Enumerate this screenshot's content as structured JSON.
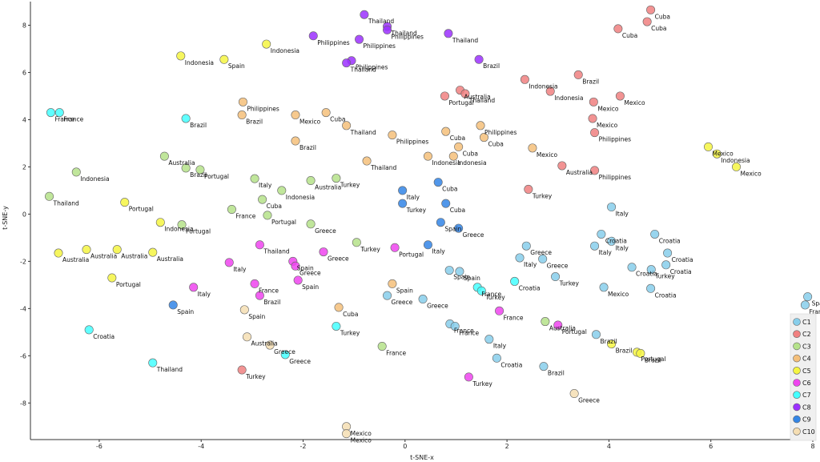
{
  "chart_data": {
    "type": "scatter",
    "xlabel": "t-SNE-x",
    "ylabel": "t-SNE-y",
    "xlim": [
      -7.35,
      8.0
    ],
    "ylim": [
      -9.55,
      9.0
    ],
    "xticks": [
      -6,
      -4,
      -2,
      0,
      2,
      4,
      6,
      8
    ],
    "yticks": [
      -8,
      -6,
      -4,
      -2,
      0,
      2,
      4,
      6,
      8
    ],
    "grid": false,
    "legend_position": "bottom-right",
    "series": [
      {
        "name": "C1",
        "color": "#87ceeb",
        "points": [
          {
            "x": 0.87,
            "y": -2.38,
            "label": "Spain"
          },
          {
            "x": 1.07,
            "y": -2.43,
            "label": "Spain"
          },
          {
            "x": 0.35,
            "y": -3.6,
            "label": "Greece"
          },
          {
            "x": -0.35,
            "y": -3.45,
            "label": "Greece"
          },
          {
            "x": 0.88,
            "y": -4.65,
            "label": "France"
          },
          {
            "x": 0.98,
            "y": -4.75,
            "label": "France"
          },
          {
            "x": 1.65,
            "y": -5.3,
            "label": "Italy"
          },
          {
            "x": 1.8,
            "y": -6.1,
            "label": "Croatia"
          },
          {
            "x": 2.72,
            "y": -6.45,
            "label": "Brazil"
          },
          {
            "x": 2.38,
            "y": -1.35,
            "label": "Greece"
          },
          {
            "x": 2.25,
            "y": -1.85,
            "label": "Italy"
          },
          {
            "x": 2.7,
            "y": -1.9,
            "label": "Greece"
          },
          {
            "x": 2.95,
            "y": -2.65,
            "label": "Turkey"
          },
          {
            "x": 3.72,
            "y": -1.35,
            "label": "Italy"
          },
          {
            "x": 3.85,
            "y": -0.85,
            "label": "Croatia"
          },
          {
            "x": 4.05,
            "y": -1.15,
            "label": "Italy"
          },
          {
            "x": 4.05,
            "y": 0.3,
            "label": "Italy"
          },
          {
            "x": 4.45,
            "y": -2.25,
            "label": "Croatia"
          },
          {
            "x": 3.9,
            "y": -3.1,
            "label": "Mexico"
          },
          {
            "x": 4.83,
            "y": -2.35,
            "label": "Turkey"
          },
          {
            "x": 4.9,
            "y": -0.85,
            "label": "Croatia"
          },
          {
            "x": 5.12,
            "y": -2.15,
            "label": "Croatia"
          },
          {
            "x": 5.15,
            "y": -1.65,
            "label": "Croatia"
          },
          {
            "x": 4.82,
            "y": -3.15,
            "label": "Croatia"
          },
          {
            "x": 3.75,
            "y": -5.1,
            "label": "Brazil"
          },
          {
            "x": 7.9,
            "y": -3.5,
            "label": "Spain"
          },
          {
            "x": 7.85,
            "y": -3.85,
            "label": "France"
          }
        ]
      },
      {
        "name": "C2",
        "color": "#f08080",
        "points": [
          {
            "x": 4.82,
            "y": 8.65,
            "label": "Cuba"
          },
          {
            "x": 4.75,
            "y": 8.15,
            "label": "Cuba"
          },
          {
            "x": 4.18,
            "y": 7.85,
            "label": "Cuba"
          },
          {
            "x": 3.4,
            "y": 5.9,
            "label": "Brazil"
          },
          {
            "x": 2.35,
            "y": 5.7,
            "label": "Indonesia"
          },
          {
            "x": 2.85,
            "y": 5.2,
            "label": "Indonesia"
          },
          {
            "x": 3.7,
            "y": 4.75,
            "label": "Mexico"
          },
          {
            "x": 4.22,
            "y": 5.0,
            "label": "Mexico"
          },
          {
            "x": 3.68,
            "y": 4.05,
            "label": "Mexico"
          },
          {
            "x": 3.72,
            "y": 3.45,
            "label": "Philippines"
          },
          {
            "x": 0.78,
            "y": 5.0,
            "label": "Portugal"
          },
          {
            "x": 1.08,
            "y": 5.25,
            "label": "Australia"
          },
          {
            "x": 1.18,
            "y": 5.1,
            "label": "Thailand"
          },
          {
            "x": 3.08,
            "y": 2.05,
            "label": "Australia"
          },
          {
            "x": 3.72,
            "y": 1.85,
            "label": "Philippines"
          },
          {
            "x": 2.42,
            "y": 1.05,
            "label": "Turkey"
          },
          {
            "x": -3.2,
            "y": -6.6,
            "label": "Turkey"
          }
        ]
      },
      {
        "name": "C3",
        "color": "#b5e28a",
        "points": [
          {
            "x": -4.72,
            "y": 2.45,
            "label": "Australia"
          },
          {
            "x": -4.3,
            "y": 1.95,
            "label": "Brazil"
          },
          {
            "x": -4.02,
            "y": 1.88,
            "label": "Portugal"
          },
          {
            "x": -6.45,
            "y": 1.78,
            "label": "Indonesia"
          },
          {
            "x": -6.98,
            "y": 0.75,
            "label": "Thailand"
          },
          {
            "x": -2.95,
            "y": 1.5,
            "label": "Italy"
          },
          {
            "x": -2.42,
            "y": 1.0,
            "label": "Indonesia"
          },
          {
            "x": -2.8,
            "y": 0.62,
            "label": "Cuba"
          },
          {
            "x": -3.4,
            "y": 0.2,
            "label": "France"
          },
          {
            "x": -2.7,
            "y": -0.05,
            "label": "Portugal"
          },
          {
            "x": -1.85,
            "y": 1.42,
            "label": "Australia"
          },
          {
            "x": -1.35,
            "y": 1.52,
            "label": "Turkey"
          },
          {
            "x": -4.38,
            "y": -0.45,
            "label": "Portugal"
          },
          {
            "x": -1.85,
            "y": -0.42,
            "label": "Greece"
          },
          {
            "x": -0.95,
            "y": -1.2,
            "label": "Turkey"
          },
          {
            "x": -0.45,
            "y": -5.6,
            "label": "France"
          },
          {
            "x": 2.75,
            "y": -4.55,
            "label": "Australia"
          }
        ]
      },
      {
        "name": "C4",
        "color": "#f4bf7a",
        "points": [
          {
            "x": -3.18,
            "y": 4.75,
            "label": "Philippines"
          },
          {
            "x": -3.2,
            "y": 4.2,
            "label": "Brazil"
          },
          {
            "x": -2.15,
            "y": 4.2,
            "label": "Mexico"
          },
          {
            "x": -1.55,
            "y": 4.3,
            "label": "Cuba"
          },
          {
            "x": -1.15,
            "y": 3.75,
            "label": "Thailand"
          },
          {
            "x": -2.15,
            "y": 3.1,
            "label": "Brazil"
          },
          {
            "x": -0.75,
            "y": 2.25,
            "label": "Thailand"
          },
          {
            "x": -0.25,
            "y": 3.35,
            "label": "Philippines"
          },
          {
            "x": 0.8,
            "y": 3.5,
            "label": "Cuba"
          },
          {
            "x": 1.05,
            "y": 2.85,
            "label": "Cuba"
          },
          {
            "x": 0.45,
            "y": 2.45,
            "label": "Indonesia"
          },
          {
            "x": 0.95,
            "y": 2.45,
            "label": "Indonesia"
          },
          {
            "x": 1.48,
            "y": 3.75,
            "label": "Philippines"
          },
          {
            "x": 1.55,
            "y": 3.25,
            "label": "Cuba"
          },
          {
            "x": 2.5,
            "y": 2.8,
            "label": "Mexico"
          },
          {
            "x": -0.25,
            "y": -2.95,
            "label": "Spain"
          },
          {
            "x": -1.3,
            "y": -3.95,
            "label": "Cuba"
          }
        ]
      },
      {
        "name": "C5",
        "color": "#f5f542",
        "points": [
          {
            "x": -2.72,
            "y": 7.2,
            "label": "Indonesia"
          },
          {
            "x": -4.4,
            "y": 6.7,
            "label": "Indonesia"
          },
          {
            "x": -3.55,
            "y": 6.55,
            "label": "Spain"
          },
          {
            "x": -5.5,
            "y": 0.5,
            "label": "Portugal"
          },
          {
            "x": -4.8,
            "y": -0.35,
            "label": "Indonesia"
          },
          {
            "x": -6.8,
            "y": -1.65,
            "label": "Australia"
          },
          {
            "x": -6.25,
            "y": -1.5,
            "label": "Australia"
          },
          {
            "x": -5.65,
            "y": -1.5,
            "label": "Australia"
          },
          {
            "x": -4.95,
            "y": -1.62,
            "label": "Australia"
          },
          {
            "x": -5.75,
            "y": -2.7,
            "label": "Portugal"
          },
          {
            "x": 5.95,
            "y": 2.85,
            "label": "Mexico"
          },
          {
            "x": 6.12,
            "y": 2.55,
            "label": "Indonesia"
          },
          {
            "x": 6.5,
            "y": 2.0,
            "label": "Mexico"
          },
          {
            "x": 4.05,
            "y": -5.5,
            "label": "Brazil"
          },
          {
            "x": 4.55,
            "y": -5.85,
            "label": "Portugal"
          },
          {
            "x": 4.62,
            "y": -5.9,
            "label": "Brazil"
          }
        ]
      },
      {
        "name": "C6",
        "color": "#ee44ee",
        "points": [
          {
            "x": -2.85,
            "y": -1.3,
            "label": "Thailand"
          },
          {
            "x": -3.45,
            "y": -2.05,
            "label": "Italy"
          },
          {
            "x": -2.2,
            "y": -2.0,
            "label": "Spain"
          },
          {
            "x": -2.15,
            "y": -2.2,
            "label": "Greece"
          },
          {
            "x": -2.1,
            "y": -2.8,
            "label": "Spain"
          },
          {
            "x": -2.95,
            "y": -2.95,
            "label": "France"
          },
          {
            "x": -2.85,
            "y": -3.45,
            "label": "Brazil"
          },
          {
            "x": -4.15,
            "y": -3.1,
            "label": "Italy"
          },
          {
            "x": -1.6,
            "y": -1.6,
            "label": "Greece"
          },
          {
            "x": -0.2,
            "y": -1.42,
            "label": "Portugal"
          },
          {
            "x": 1.85,
            "y": -4.1,
            "label": "France"
          },
          {
            "x": 1.25,
            "y": -6.9,
            "label": "Turkey"
          },
          {
            "x": 3.0,
            "y": -4.7,
            "label": "Portugal"
          }
        ]
      },
      {
        "name": "C7",
        "color": "#44ffff",
        "points": [
          {
            "x": -6.95,
            "y": 4.3,
            "label": "France"
          },
          {
            "x": -6.78,
            "y": 4.3,
            "label": "France"
          },
          {
            "x": -4.3,
            "y": 4.05,
            "label": "Brazil"
          },
          {
            "x": -6.2,
            "y": -4.9,
            "label": "Croatia"
          },
          {
            "x": -4.95,
            "y": -6.3,
            "label": "Thailand"
          },
          {
            "x": -2.35,
            "y": -5.95,
            "label": "Greece"
          },
          {
            "x": -1.35,
            "y": -4.75,
            "label": "Turkey"
          },
          {
            "x": 1.42,
            "y": -3.1,
            "label": "France"
          },
          {
            "x": 1.5,
            "y": -3.25,
            "label": "Turkey"
          },
          {
            "x": 2.15,
            "y": -2.85,
            "label": "Croatia"
          }
        ]
      },
      {
        "name": "C8",
        "color": "#9b30ff",
        "points": [
          {
            "x": -0.8,
            "y": 8.45,
            "label": "Thailand"
          },
          {
            "x": -0.35,
            "y": 7.95,
            "label": "Thailand"
          },
          {
            "x": -0.35,
            "y": 7.8,
            "label": "Philippines"
          },
          {
            "x": -1.8,
            "y": 7.55,
            "label": "Philippines"
          },
          {
            "x": -0.9,
            "y": 7.4,
            "label": "Philippines"
          },
          {
            "x": -1.05,
            "y": 6.5,
            "label": "Philippines"
          },
          {
            "x": -1.15,
            "y": 6.4,
            "label": "Thailand"
          },
          {
            "x": 0.85,
            "y": 7.65,
            "label": "Thailand"
          },
          {
            "x": 1.45,
            "y": 6.55,
            "label": "Brazil"
          }
        ]
      },
      {
        "name": "C9",
        "color": "#3385e6",
        "points": [
          {
            "x": -0.05,
            "y": 1.0,
            "label": "Italy"
          },
          {
            "x": -0.05,
            "y": 0.45,
            "label": "Turkey"
          },
          {
            "x": 0.65,
            "y": 1.35,
            "label": "Cuba"
          },
          {
            "x": 0.8,
            "y": 0.45,
            "label": "Cuba"
          },
          {
            "x": 0.7,
            "y": -0.35,
            "label": "Spain"
          },
          {
            "x": 1.05,
            "y": -0.6,
            "label": "Greece"
          },
          {
            "x": 0.45,
            "y": -1.3,
            "label": "Italy"
          },
          {
            "x": -4.55,
            "y": -3.85,
            "label": "Spain"
          }
        ]
      },
      {
        "name": "C10",
        "color": "#f5deb3",
        "points": [
          {
            "x": -3.15,
            "y": -4.05,
            "label": "Spain"
          },
          {
            "x": -3.1,
            "y": -5.2,
            "label": "Australia"
          },
          {
            "x": -2.65,
            "y": -5.55,
            "label": "Greece"
          },
          {
            "x": -1.15,
            "y": -9.0,
            "label": "Mexico"
          },
          {
            "x": -1.15,
            "y": -9.3,
            "label": "Mexico"
          },
          {
            "x": 3.32,
            "y": -7.6,
            "label": "Greece"
          }
        ]
      }
    ]
  }
}
